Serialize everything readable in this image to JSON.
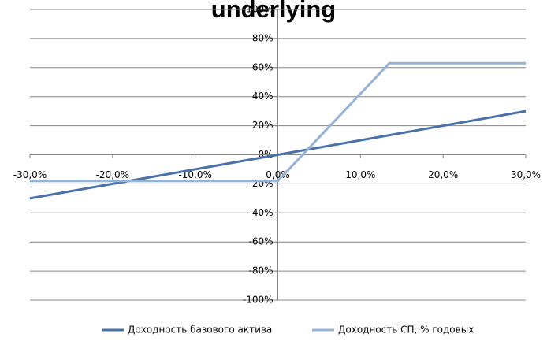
{
  "chart_data": {
    "type": "line",
    "title": "underlying",
    "x": [
      -30,
      0,
      13.5,
      30
    ],
    "series": [
      {
        "name": "Доходность базового актива",
        "color": "#4a72a8",
        "values": [
          -30,
          0,
          13.5,
          30
        ]
      },
      {
        "name": "Доходность СП, % годовых",
        "color": "#95b3d7",
        "values": [
          -18,
          -18,
          63,
          63
        ]
      }
    ],
    "xlim": [
      -30,
      30
    ],
    "xticks": [
      {
        "value": -30,
        "label": "-30,0%"
      },
      {
        "value": -20,
        "label": "-20,0%"
      },
      {
        "value": -10,
        "label": "-10,0%"
      },
      {
        "value": 0,
        "label": "0,0%"
      },
      {
        "value": 10,
        "label": "10,0%"
      },
      {
        "value": 20,
        "label": "20,0%"
      },
      {
        "value": 30,
        "label": "30,0%"
      }
    ],
    "ylim": [
      -100,
      100
    ],
    "yticks": [
      {
        "value": -100,
        "label": "-100%"
      },
      {
        "value": -80,
        "label": "-80%"
      },
      {
        "value": -60,
        "label": "-60%"
      },
      {
        "value": -40,
        "label": "-40%"
      },
      {
        "value": -20,
        "label": "-20%"
      },
      {
        "value": 0,
        "label": "0%"
      },
      {
        "value": 20,
        "label": "20%"
      },
      {
        "value": 40,
        "label": "40%"
      },
      {
        "value": 60,
        "label": "60%"
      },
      {
        "value": 80,
        "label": "80%"
      },
      {
        "value": 100,
        "label": "100%"
      }
    ],
    "grid": true,
    "legend": "bottom"
  }
}
